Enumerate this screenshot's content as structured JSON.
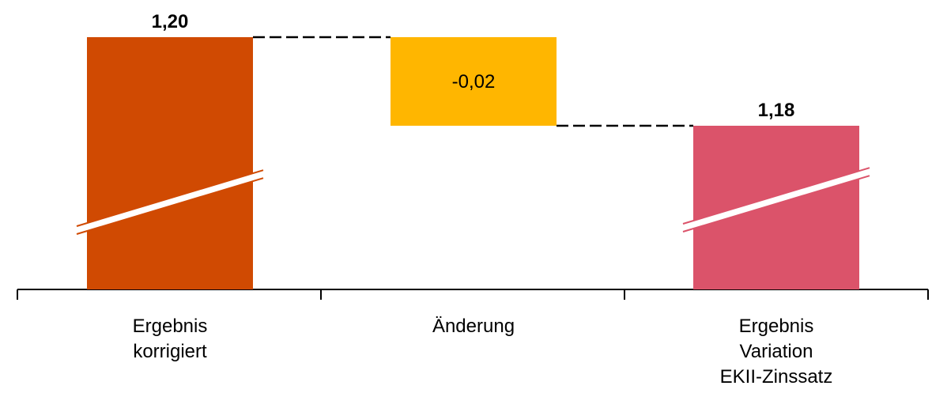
{
  "chart_data": {
    "type": "waterfall",
    "categories": [
      "Ergebnis korrigiert",
      "Änderung",
      "Ergebnis Variation EKII-Zinssatz"
    ],
    "category_label_lines": [
      [
        "Ergebnis",
        "korrigiert"
      ],
      [
        "Änderung"
      ],
      [
        "Ergebnis",
        "Variation",
        "EKII-Zinssatz"
      ]
    ],
    "values": [
      1.2,
      -0.02,
      1.18
    ],
    "value_labels": [
      "1,20",
      "-0,02",
      "1,18"
    ],
    "bar_kinds": [
      "total",
      "delta",
      "total"
    ],
    "axis_break": true,
    "connectors": true,
    "grid": false,
    "legend": "none",
    "colors": {
      "total_start": "#D04A02",
      "delta": "#FFB600",
      "total_end": "#DB536A",
      "connector": "#000000",
      "axis": "#000000"
    }
  }
}
